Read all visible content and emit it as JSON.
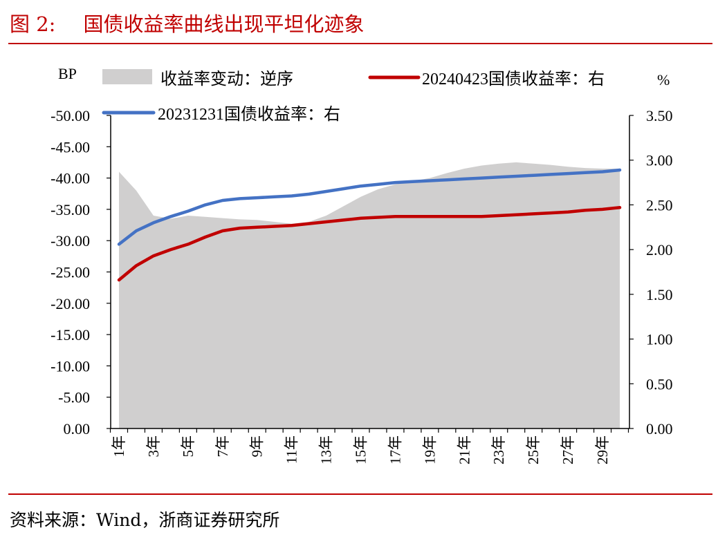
{
  "figure": {
    "label": "图 2:",
    "title": "国债收益率曲线出现平坦化迹象",
    "source": "资料来源：Wind，浙商证券研究所"
  },
  "colors": {
    "accent": "#c00000",
    "area": "#d0cfcf",
    "series_red": "#c00000",
    "series_blue": "#4472c4"
  },
  "chart_data": {
    "type": "area+line",
    "left_axis": {
      "unit_label": "BP",
      "reversed": true,
      "ylim": [
        0,
        -50
      ],
      "ticks": [
        "-50.00",
        "-45.00",
        "-40.00",
        "-35.00",
        "-30.00",
        "-25.00",
        "-20.00",
        "-15.00",
        "-10.00",
        "-5.00",
        "0.00"
      ]
    },
    "right_axis": {
      "unit_label": "%",
      "ylim": [
        0,
        3.5
      ],
      "ticks": [
        "3.50",
        "3.00",
        "2.50",
        "2.00",
        "1.50",
        "1.00",
        "0.50",
        "0.00"
      ]
    },
    "x": [
      1,
      2,
      3,
      4,
      5,
      6,
      7,
      8,
      9,
      10,
      11,
      12,
      13,
      14,
      15,
      16,
      17,
      18,
      19,
      20,
      21,
      22,
      23,
      24,
      25,
      26,
      27,
      28,
      29,
      30
    ],
    "x_tick_labels": [
      "1年",
      "3年",
      "5年",
      "7年",
      "9年",
      "11年",
      "13年",
      "15年",
      "17年",
      "19年",
      "21年",
      "23年",
      "25年",
      "27年",
      "29年"
    ],
    "grid": false,
    "legend": {
      "placement": "top"
    },
    "series": [
      {
        "name": "收益率变动：逆序",
        "type": "area",
        "axis": "left",
        "values": [
          -41,
          -38,
          -34,
          -33.5,
          -34,
          -33.8,
          -33.6,
          -33.4,
          -33.3,
          -33,
          -32.7,
          -33,
          -34,
          -35.5,
          -37,
          -38.2,
          -39,
          -39.5,
          -40,
          -40.8,
          -41.5,
          -42,
          -42.3,
          -42.5,
          -42.3,
          -42.1,
          -41.8,
          -41.6,
          -41.5,
          -41.5
        ]
      },
      {
        "name": "20240423国债收益率：右",
        "type": "line",
        "axis": "right",
        "values": [
          1.66,
          1.82,
          1.93,
          2.0,
          2.06,
          2.14,
          2.21,
          2.24,
          2.25,
          2.26,
          2.27,
          2.29,
          2.31,
          2.33,
          2.35,
          2.36,
          2.37,
          2.37,
          2.37,
          2.37,
          2.37,
          2.37,
          2.38,
          2.39,
          2.4,
          2.41,
          2.42,
          2.44,
          2.45,
          2.47
        ]
      },
      {
        "name": "20231231国债收益率：右",
        "type": "line",
        "axis": "right",
        "values": [
          2.06,
          2.21,
          2.3,
          2.37,
          2.43,
          2.5,
          2.55,
          2.57,
          2.58,
          2.59,
          2.6,
          2.62,
          2.65,
          2.68,
          2.71,
          2.73,
          2.75,
          2.76,
          2.77,
          2.78,
          2.79,
          2.8,
          2.81,
          2.82,
          2.83,
          2.84,
          2.85,
          2.86,
          2.87,
          2.89
        ]
      }
    ]
  }
}
